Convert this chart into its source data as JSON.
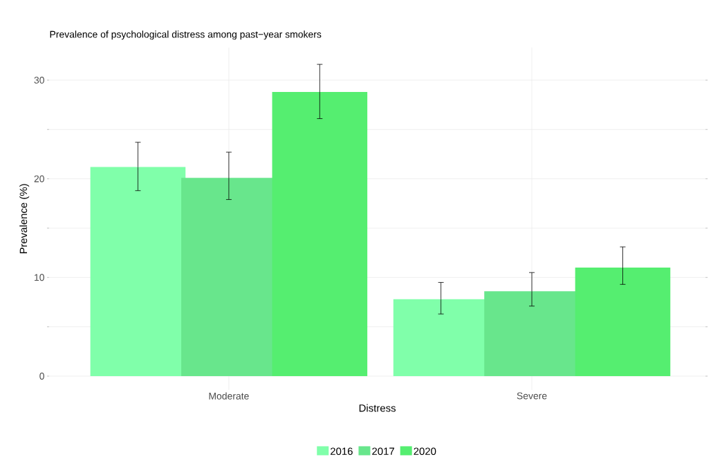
{
  "chart_data": {
    "type": "bar",
    "title": "Prevalence of psychological distress among past−year smokers",
    "xlabel": "Distress",
    "ylabel": "Prevalence (%)",
    "categories": [
      "Moderate",
      "Severe"
    ],
    "series": [
      {
        "name": "2016",
        "color": "#80ffaa",
        "values": [
          21.2,
          7.8
        ],
        "errors": [
          [
            18.8,
            23.7
          ],
          [
            6.3,
            9.5
          ]
        ]
      },
      {
        "name": "2017",
        "color": "#68e68c",
        "values": [
          20.1,
          8.6
        ],
        "errors": [
          [
            17.9,
            22.7
          ],
          [
            7.1,
            10.5
          ]
        ]
      },
      {
        "name": "2020",
        "color": "#55ee70",
        "values": [
          28.8,
          11.0
        ],
        "errors": [
          [
            26.1,
            31.6
          ],
          [
            9.3,
            13.1
          ]
        ]
      }
    ],
    "ylim": [
      -1.4,
      33.3
    ],
    "yticks": [
      0,
      {
        "value": 5,
        "label": null
      },
      10,
      {
        "value": 15,
        "label": null
      },
      20,
      {
        "value": 25,
        "label": null
      },
      30
    ],
    "grid": true,
    "legend": "bottom"
  }
}
